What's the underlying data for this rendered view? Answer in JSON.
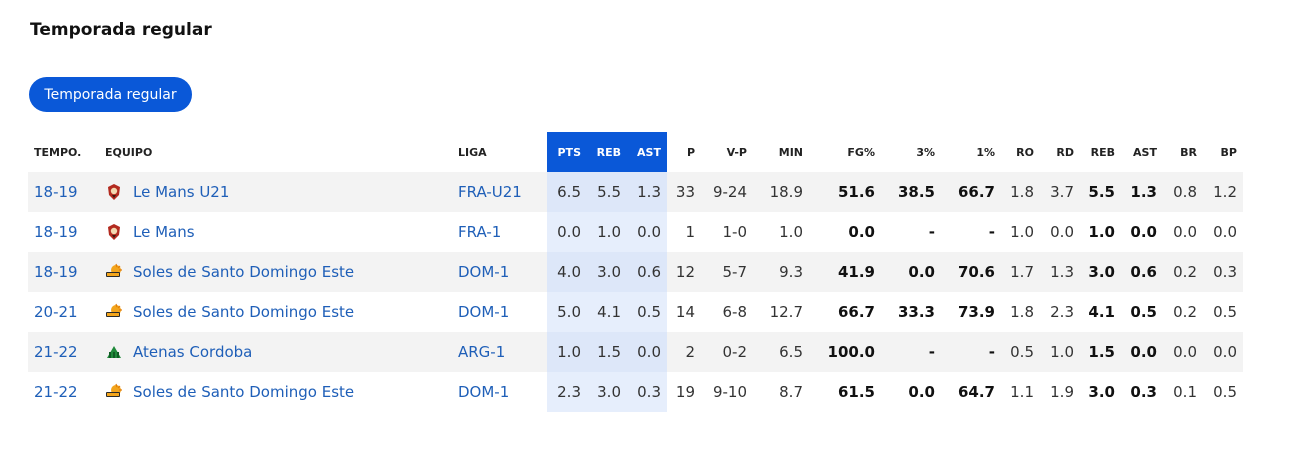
{
  "page_title": "Temporada regular",
  "season_button": "Temporada regular",
  "headers": [
    "TEMPO.",
    "EQUIPO",
    "LIGA",
    "PTS",
    "REB",
    "AST",
    "P",
    "V-P",
    "MIN",
    "FG%",
    "3%",
    "1%",
    "RO",
    "RD",
    "REB",
    "AST",
    "BR",
    "BP"
  ],
  "rows": [
    {
      "season": "18-19",
      "team": "Le Mans U21",
      "logo": "le-mans-logo",
      "league": "FRA-U21",
      "pts": "6.5",
      "reb": "5.5",
      "ast": "1.3",
      "p": "33",
      "vp": "9-24",
      "min": "18.9",
      "fg": "51.6",
      "three": "38.5",
      "one": "66.7",
      "ro": "1.8",
      "rd": "3.7",
      "reb2": "5.5",
      "ast2": "1.3",
      "br": "0.8",
      "bp": "1.2"
    },
    {
      "season": "18-19",
      "team": "Le Mans",
      "logo": "le-mans-logo",
      "league": "FRA-1",
      "pts": "0.0",
      "reb": "1.0",
      "ast": "0.0",
      "p": "1",
      "vp": "1-0",
      "min": "1.0",
      "fg": "0.0",
      "three": "-",
      "one": "-",
      "ro": "1.0",
      "rd": "0.0",
      "reb2": "1.0",
      "ast2": "0.0",
      "br": "0.0",
      "bp": "0.0"
    },
    {
      "season": "18-19",
      "team": "Soles de Santo Domingo Este",
      "logo": "soles-logo",
      "league": "DOM-1",
      "pts": "4.0",
      "reb": "3.0",
      "ast": "0.6",
      "p": "12",
      "vp": "5-7",
      "min": "9.3",
      "fg": "41.9",
      "three": "0.0",
      "one": "70.6",
      "ro": "1.7",
      "rd": "1.3",
      "reb2": "3.0",
      "ast2": "0.6",
      "br": "0.2",
      "bp": "0.3"
    },
    {
      "season": "20-21",
      "team": "Soles de Santo Domingo Este",
      "logo": "soles-logo",
      "league": "DOM-1",
      "pts": "5.0",
      "reb": "4.1",
      "ast": "0.5",
      "p": "14",
      "vp": "6-8",
      "min": "12.7",
      "fg": "66.7",
      "three": "33.3",
      "one": "73.9",
      "ro": "1.8",
      "rd": "2.3",
      "reb2": "4.1",
      "ast2": "0.5",
      "br": "0.2",
      "bp": "0.5"
    },
    {
      "season": "21-22",
      "team": "Atenas Cordoba",
      "logo": "atenas-logo",
      "league": "ARG-1",
      "pts": "1.0",
      "reb": "1.5",
      "ast": "0.0",
      "p": "2",
      "vp": "0-2",
      "min": "6.5",
      "fg": "100.0",
      "three": "-",
      "one": "-",
      "ro": "0.5",
      "rd": "1.0",
      "reb2": "1.5",
      "ast2": "0.0",
      "br": "0.0",
      "bp": "0.0"
    },
    {
      "season": "21-22",
      "team": "Soles de Santo Domingo Este",
      "logo": "soles-logo",
      "league": "DOM-1",
      "pts": "2.3",
      "reb": "3.0",
      "ast": "0.3",
      "p": "19",
      "vp": "9-10",
      "min": "8.7",
      "fg": "61.5",
      "three": "0.0",
      "one": "64.7",
      "ro": "1.1",
      "rd": "1.9",
      "reb2": "3.0",
      "ast2": "0.3",
      "br": "0.1",
      "bp": "0.5"
    }
  ],
  "colors": {
    "accent": "#0a58d8",
    "link": "#1f5fb8",
    "highlight_col": "#e6eefc"
  }
}
